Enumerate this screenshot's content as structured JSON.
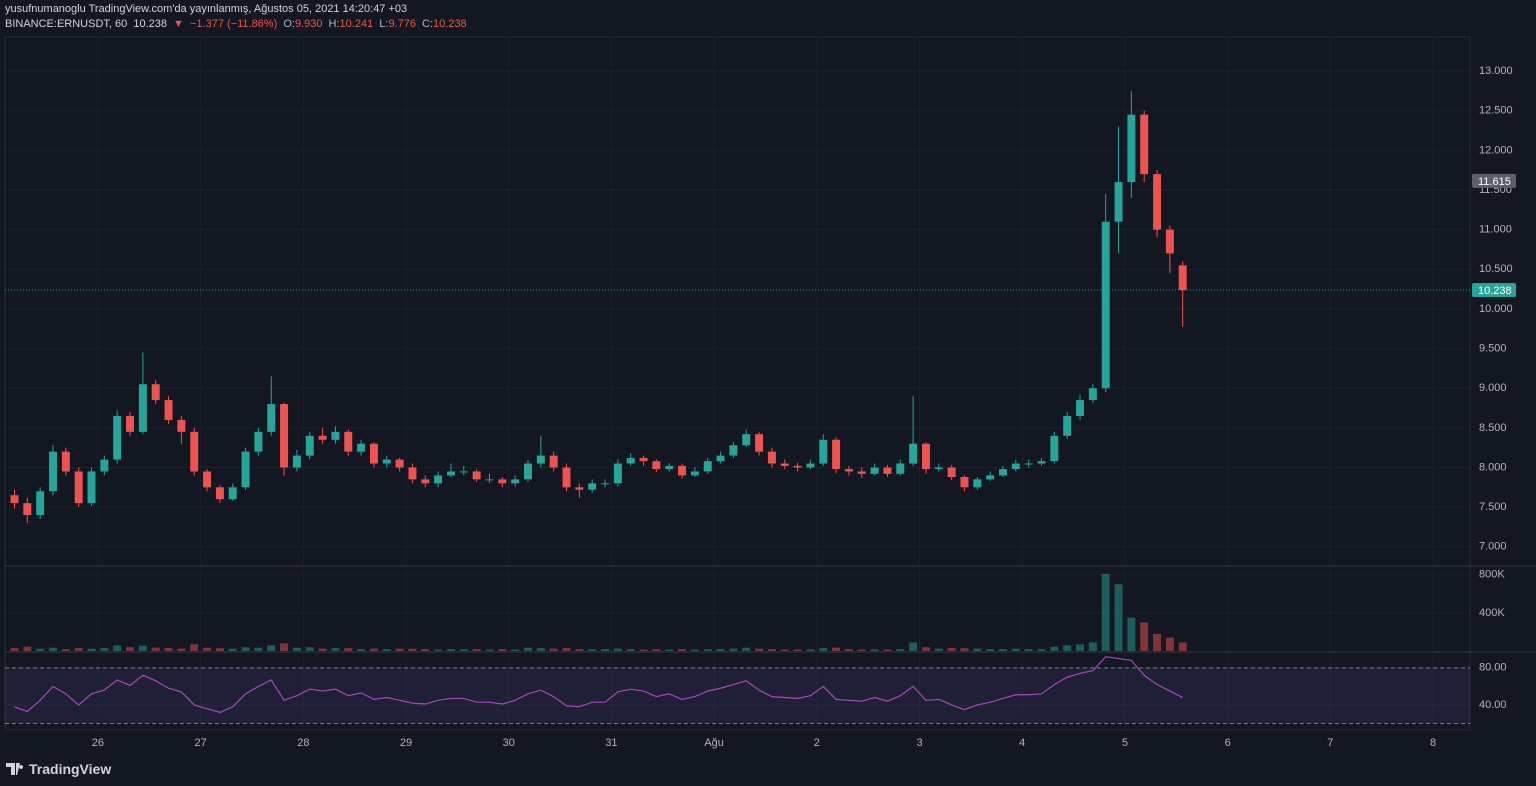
{
  "header": {
    "line1": "yusufnumanoglu TradingView.com'da yayınlanmış, Ağustos 05, 2021 14:20:47 +03",
    "symbol": "BINANCE:ERNUSDT, 60",
    "last": "10.238",
    "arrow": "▼",
    "change": "−1.377 (−11.86%)",
    "o_label": "O:",
    "o": "9.930",
    "h_label": "H:",
    "h": "10.241",
    "l_label": "L:",
    "l": "9.776",
    "c_label": "C:",
    "c": "10.238"
  },
  "footer": {
    "logo": "TradingView"
  },
  "chart_data": {
    "type": "candlestick",
    "up_color": "#26a69a",
    "down_color": "#ef5350",
    "grid": true,
    "xlim": [
      "2021-07-25T02:17",
      "2021-08-08T08:38"
    ],
    "xticks": [
      {
        "value": "2021-07-26T00:00",
        "label": "26"
      },
      {
        "value": "2021-07-27T00:00",
        "label": "27"
      },
      {
        "value": "2021-07-28T00:00",
        "label": "28"
      },
      {
        "value": "2021-07-29T00:00",
        "label": "29"
      },
      {
        "value": "2021-07-30T00:00",
        "label": "30"
      },
      {
        "value": "2021-07-31T00:00",
        "label": "31"
      },
      {
        "value": "2021-08-01T00:00",
        "label": "Ağu"
      },
      {
        "value": "2021-08-02T00:00",
        "label": "2"
      },
      {
        "value": "2021-08-03T00:00",
        "label": "3"
      },
      {
        "value": "2021-08-04T00:00",
        "label": "4"
      },
      {
        "value": "2021-08-05T00:00",
        "label": "5"
      },
      {
        "value": "2021-08-06T00:00",
        "label": "6"
      },
      {
        "value": "2021-08-07T00:00",
        "label": "7"
      },
      {
        "value": "2021-08-08T00:00",
        "label": "8"
      }
    ],
    "ylim": [
      6.77,
      13.43
    ],
    "yticks": [
      {
        "value": 7,
        "label": "7.000"
      },
      {
        "value": 7.5,
        "label": "7.500"
      },
      {
        "value": 8,
        "label": "8.000"
      },
      {
        "value": 8.5,
        "label": "8.500"
      },
      {
        "value": 9,
        "label": "9.000"
      },
      {
        "value": 9.5,
        "label": "9.500"
      },
      {
        "value": 10,
        "label": "10.000"
      },
      {
        "value": 10.5,
        "label": "10.500"
      },
      {
        "value": 11,
        "label": "11.000"
      },
      {
        "value": 11.5,
        "label": "11.500"
      },
      {
        "value": 12,
        "label": "12.000"
      },
      {
        "value": 12.5,
        "label": "12.500"
      },
      {
        "value": 13,
        "label": "13.000"
      }
    ],
    "markers": [
      {
        "value": 11.615,
        "color": "#5d606b",
        "line": false
      },
      {
        "value": 10.238,
        "color": "#26a69a",
        "line": true
      }
    ],
    "x": [
      "2021-07-25T03:00",
      "2021-07-25T06:00",
      "2021-07-25T09:00",
      "2021-07-25T12:00",
      "2021-07-25T15:00",
      "2021-07-25T18:00",
      "2021-07-25T21:00",
      "2021-07-26T00:00",
      "2021-07-26T03:00",
      "2021-07-26T06:00",
      "2021-07-26T09:00",
      "2021-07-26T12:00",
      "2021-07-26T15:00",
      "2021-07-26T18:00",
      "2021-07-26T21:00",
      "2021-07-27T00:00",
      "2021-07-27T03:00",
      "2021-07-27T06:00",
      "2021-07-27T09:00",
      "2021-07-27T12:00",
      "2021-07-27T15:00",
      "2021-07-27T18:00",
      "2021-07-27T21:00",
      "2021-07-28T00:00",
      "2021-07-28T03:00",
      "2021-07-28T06:00",
      "2021-07-28T09:00",
      "2021-07-28T12:00",
      "2021-07-28T15:00",
      "2021-07-28T18:00",
      "2021-07-28T21:00",
      "2021-07-29T00:00",
      "2021-07-29T03:00",
      "2021-07-29T06:00",
      "2021-07-29T09:00",
      "2021-07-29T12:00",
      "2021-07-29T15:00",
      "2021-07-29T18:00",
      "2021-07-29T21:00",
      "2021-07-30T00:00",
      "2021-07-30T03:00",
      "2021-07-30T06:00",
      "2021-07-30T09:00",
      "2021-07-30T12:00",
      "2021-07-30T15:00",
      "2021-07-30T18:00",
      "2021-07-30T21:00",
      "2021-07-31T00:00",
      "2021-07-31T03:00",
      "2021-07-31T06:00",
      "2021-07-31T09:00",
      "2021-07-31T12:00",
      "2021-07-31T15:00",
      "2021-07-31T18:00",
      "2021-07-31T21:00",
      "2021-08-01T00:00",
      "2021-08-01T03:00",
      "2021-08-01T06:00",
      "2021-08-01T09:00",
      "2021-08-01T12:00",
      "2021-08-01T15:00",
      "2021-08-01T18:00",
      "2021-08-01T21:00",
      "2021-08-02T00:00",
      "2021-08-02T03:00",
      "2021-08-02T06:00",
      "2021-08-02T09:00",
      "2021-08-02T12:00",
      "2021-08-02T15:00",
      "2021-08-02T18:00",
      "2021-08-02T21:00",
      "2021-08-03T00:00",
      "2021-08-03T03:00",
      "2021-08-03T06:00",
      "2021-08-03T09:00",
      "2021-08-03T12:00",
      "2021-08-03T15:00",
      "2021-08-03T18:00",
      "2021-08-03T21:00",
      "2021-08-04T00:00",
      "2021-08-04T03:00",
      "2021-08-04T06:00",
      "2021-08-04T09:00",
      "2021-08-04T12:00",
      "2021-08-04T15:00",
      "2021-08-04T18:00",
      "2021-08-04T21:00",
      "2021-08-05T00:00",
      "2021-08-05T03:00",
      "2021-08-05T06:00",
      "2021-08-05T09:00",
      "2021-08-05T12:00"
    ],
    "open": [
      7.65,
      7.55,
      7.4,
      7.7,
      8.2,
      7.95,
      7.55,
      7.95,
      8.1,
      8.65,
      8.45,
      9.05,
      8.85,
      8.6,
      8.45,
      7.95,
      7.75,
      7.6,
      7.75,
      8.2,
      8.45,
      8.8,
      8.0,
      8.15,
      8.4,
      8.35,
      8.45,
      8.2,
      8.3,
      8.05,
      8.1,
      8.0,
      7.85,
      7.8,
      7.9,
      7.95,
      7.95,
      7.85,
      7.85,
      7.8,
      7.85,
      8.05,
      8.15,
      8.0,
      7.75,
      7.72,
      7.8,
      7.8,
      8.05,
      8.12,
      8.08,
      7.98,
      8.02,
      7.9,
      7.95,
      8.08,
      8.15,
      8.28,
      8.42,
      8.2,
      8.05,
      8.02,
      8.0,
      8.05,
      8.35,
      7.98,
      7.95,
      7.92,
      8.0,
      7.92,
      8.05,
      8.3,
      7.98,
      8.0,
      7.88,
      7.75,
      7.85,
      7.9,
      7.98,
      8.05,
      8.05,
      8.08,
      8.4,
      8.65,
      8.85,
      9.0,
      11.1,
      11.6,
      12.45,
      11.7,
      11.0,
      10.55
    ],
    "high": [
      7.72,
      7.62,
      7.75,
      8.28,
      8.25,
      8.0,
      8.0,
      8.15,
      8.72,
      8.7,
      9.45,
      9.1,
      8.9,
      8.65,
      8.5,
      7.98,
      7.78,
      7.8,
      8.25,
      8.5,
      9.15,
      8.82,
      8.22,
      8.45,
      8.5,
      8.52,
      8.48,
      8.35,
      8.32,
      8.15,
      8.12,
      8.05,
      7.9,
      7.95,
      8.05,
      8.02,
      7.98,
      7.92,
      7.88,
      7.9,
      8.1,
      8.4,
      8.2,
      8.05,
      7.8,
      7.85,
      7.85,
      8.1,
      8.18,
      8.15,
      8.1,
      8.06,
      8.05,
      8.0,
      8.12,
      8.2,
      8.32,
      8.48,
      8.45,
      8.25,
      8.1,
      8.06,
      8.1,
      8.42,
      8.38,
      8.02,
      8.0,
      8.05,
      8.03,
      8.1,
      8.9,
      8.32,
      8.05,
      8.03,
      7.9,
      7.88,
      7.95,
      8.02,
      8.1,
      8.1,
      8.12,
      8.45,
      8.7,
      8.92,
      9.05,
      11.45,
      12.3,
      12.75,
      12.5,
      11.75,
      11.05,
      10.6
    ],
    "low": [
      7.48,
      7.3,
      7.35,
      7.65,
      7.9,
      7.5,
      7.52,
      7.9,
      8.05,
      8.4,
      8.42,
      8.8,
      8.55,
      8.3,
      7.9,
      7.7,
      7.55,
      7.58,
      7.72,
      8.15,
      8.4,
      7.9,
      7.95,
      8.1,
      8.3,
      8.3,
      8.15,
      8.15,
      8.0,
      8.0,
      7.95,
      7.8,
      7.75,
      7.75,
      7.88,
      7.9,
      7.82,
      7.8,
      7.75,
      7.76,
      7.82,
      8.0,
      7.95,
      7.7,
      7.62,
      7.68,
      7.75,
      7.76,
      8.02,
      8.02,
      7.94,
      7.95,
      7.86,
      7.88,
      7.92,
      8.05,
      8.12,
      8.26,
      8.15,
      8.0,
      7.98,
      7.95,
      7.98,
      8.02,
      7.93,
      7.9,
      7.87,
      7.9,
      7.88,
      7.9,
      8.02,
      7.92,
      7.95,
      7.84,
      7.7,
      7.72,
      7.83,
      7.88,
      7.95,
      8.0,
      8.02,
      8.05,
      8.36,
      8.6,
      8.82,
      8.95,
      10.7,
      11.4,
      11.6,
      10.9,
      10.45,
      9.776
    ],
    "close": [
      7.55,
      7.4,
      7.7,
      8.2,
      7.95,
      7.55,
      7.95,
      8.1,
      8.65,
      8.45,
      9.05,
      8.85,
      8.6,
      8.45,
      7.95,
      7.75,
      7.6,
      7.75,
      8.2,
      8.45,
      8.8,
      8.0,
      8.15,
      8.4,
      8.35,
      8.45,
      8.2,
      8.3,
      8.05,
      8.1,
      8.0,
      7.85,
      7.8,
      7.9,
      7.95,
      7.95,
      7.85,
      7.85,
      7.8,
      7.85,
      8.05,
      8.15,
      8.0,
      7.75,
      7.72,
      7.8,
      7.8,
      8.05,
      8.12,
      8.08,
      7.98,
      8.02,
      7.9,
      7.95,
      8.08,
      8.15,
      8.28,
      8.42,
      8.2,
      8.05,
      8.02,
      8.0,
      8.05,
      8.35,
      7.98,
      7.95,
      7.92,
      8.0,
      7.92,
      8.05,
      8.3,
      7.98,
      8.0,
      7.88,
      7.75,
      7.85,
      7.9,
      7.98,
      8.05,
      8.05,
      8.08,
      8.4,
      8.65,
      8.85,
      9.0,
      11.1,
      11.6,
      12.45,
      11.7,
      11.0,
      10.7,
      10.238
    ],
    "volume": {
      "ylim": [
        0,
        882000
      ],
      "yticks": [
        {
          "value": 800000,
          "label": "800K"
        },
        {
          "value": 400000,
          "label": "400K"
        }
      ],
      "values": [
        30000,
        45000,
        25000,
        35000,
        20000,
        30000,
        25000,
        30000,
        60000,
        40000,
        55000,
        35000,
        30000,
        25000,
        70000,
        35000,
        30000,
        25000,
        40000,
        35000,
        60000,
        80000,
        35000,
        40000,
        25000,
        30000,
        30000,
        20000,
        25000,
        20000,
        25000,
        25000,
        20000,
        15000,
        20000,
        18000,
        20000,
        15000,
        20000,
        15000,
        35000,
        30000,
        25000,
        30000,
        20000,
        18000,
        20000,
        25000,
        20000,
        15000,
        18000,
        15000,
        20000,
        15000,
        18000,
        20000,
        25000,
        35000,
        25000,
        20000,
        15000,
        15000,
        18000,
        30000,
        35000,
        20000,
        15000,
        18000,
        15000,
        20000,
        90000,
        40000,
        25000,
        30000,
        30000,
        25000,
        20000,
        20000,
        25000,
        20000,
        20000,
        45000,
        60000,
        70000,
        90000,
        810000,
        700000,
        350000,
        300000,
        180000,
        140000,
        90000
      ]
    },
    "rsi": {
      "color": "#ab47bc",
      "ylim": [
        13,
        96
      ],
      "bands": [
        20,
        80
      ],
      "yticks": [
        {
          "value": 80,
          "label": "80.00"
        },
        {
          "value": 40,
          "label": "40.00"
        }
      ],
      "values": [
        38,
        33,
        45,
        60,
        52,
        40,
        52,
        56,
        67,
        61,
        72,
        66,
        58,
        54,
        40,
        36,
        32,
        38,
        52,
        60,
        67,
        45,
        50,
        57,
        55,
        57,
        50,
        53,
        46,
        48,
        45,
        42,
        41,
        45,
        47,
        47,
        43,
        43,
        41,
        45,
        52,
        56,
        49,
        39,
        38,
        43,
        43,
        54,
        57,
        55,
        49,
        52,
        46,
        49,
        55,
        58,
        62,
        66,
        56,
        49,
        48,
        47,
        50,
        60,
        46,
        45,
        44,
        48,
        44,
        50,
        60,
        45,
        46,
        40,
        35,
        40,
        43,
        47,
        51,
        51,
        52,
        62,
        70,
        74,
        77,
        92,
        90,
        88,
        72,
        62,
        55,
        48
      ]
    }
  }
}
